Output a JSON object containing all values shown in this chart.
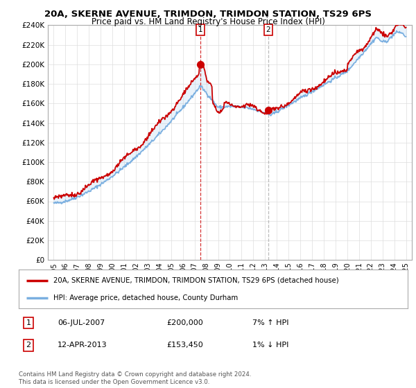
{
  "title": "20A, SKERNE AVENUE, TRIMDON, TRIMDON STATION, TS29 6PS",
  "subtitle": "Price paid vs. HM Land Registry's House Price Index (HPI)",
  "ylim": [
    0,
    240000
  ],
  "yticks": [
    0,
    20000,
    40000,
    60000,
    80000,
    100000,
    120000,
    140000,
    160000,
    180000,
    200000,
    220000,
    240000
  ],
  "ytick_labels": [
    "£0",
    "£20K",
    "£40K",
    "£60K",
    "£80K",
    "£100K",
    "£120K",
    "£140K",
    "£160K",
    "£180K",
    "£200K",
    "£220K",
    "£240K"
  ],
  "line_color_red": "#cc0000",
  "line_color_blue": "#7aafe0",
  "marker_color_red": "#cc0000",
  "sale1_year": 2007.51,
  "sale1_price": 200000,
  "sale2_year": 2013.28,
  "sale2_price": 153450,
  "vline1_color": "#cc0000",
  "vline2_color": "#aaaaaa",
  "legend_red": "20A, SKERNE AVENUE, TRIMDON, TRIMDON STATION, TS29 6PS (detached house)",
  "legend_blue": "HPI: Average price, detached house, County Durham",
  "table_rows": [
    [
      "1",
      "06-JUL-2007",
      "£200,000",
      "7% ↑ HPI"
    ],
    [
      "2",
      "12-APR-2013",
      "£153,450",
      "1% ↓ HPI"
    ]
  ],
  "footer": "Contains HM Land Registry data © Crown copyright and database right 2024.\nThis data is licensed under the Open Government Licence v3.0.",
  "background_color": "#ffffff",
  "grid_color": "#dddddd",
  "fill_color": "#aaccee",
  "fill_alpha": 0.25
}
